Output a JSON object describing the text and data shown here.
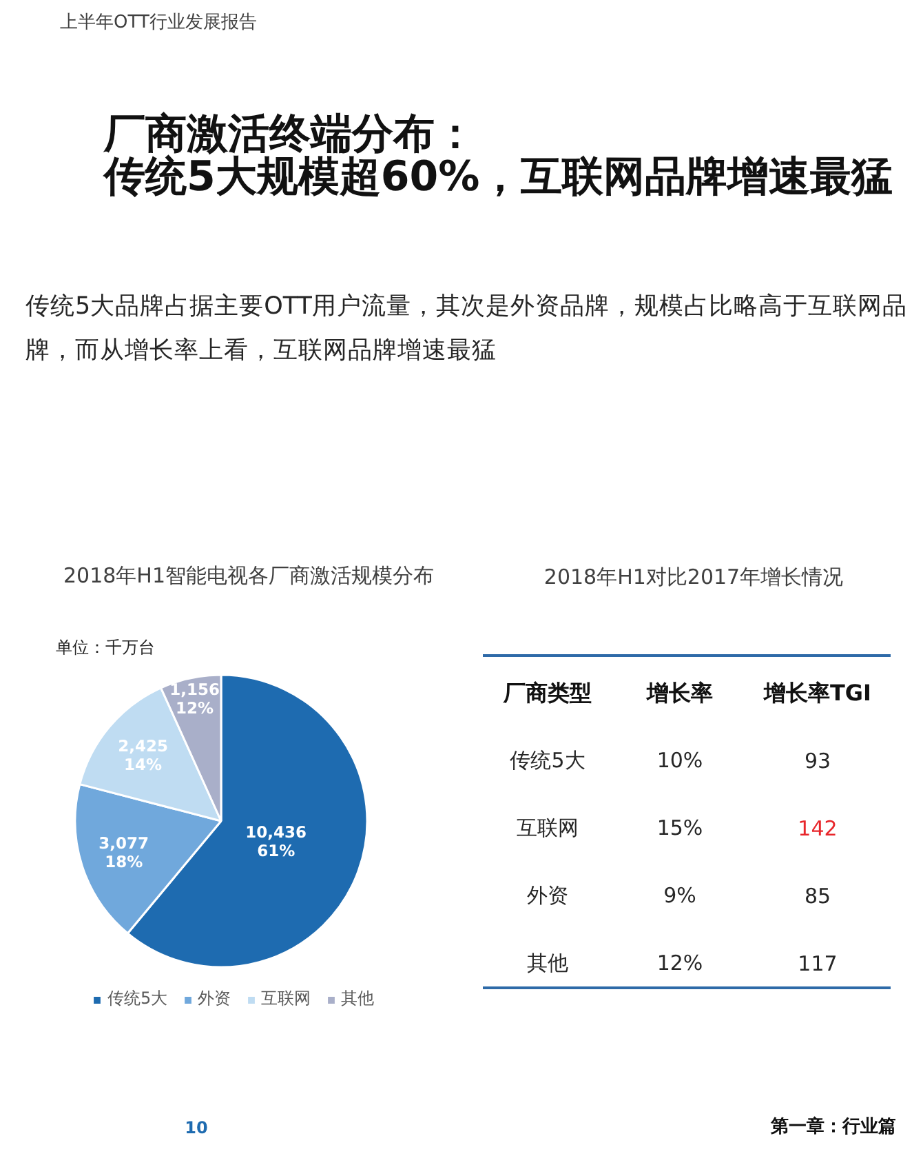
{
  "chart_data": [
    {
      "type": "other",
      "title": "厂商激活终端分布：传统5大规模超60%，互联网品牌增速最猛",
      "subtitle": "传统5大品牌占据主要OTT用户流量，其次是外资品牌，规模占比略高于互联网品牌，而从增长率上看，互联网品牌增速最猛",
      "annotations": [
        "上半年OTT行业发展报告",
        "10",
        "第一章：行业篇"
      ]
    },
    {
      "type": "pie",
      "title": "2018年H1智能电视各厂商激活规模分布",
      "annotations": [
        "单位：千万台"
      ],
      "categories": [
        "传统5大",
        "外资",
        "互联网",
        "其他"
      ],
      "values": [
        10436,
        3077,
        2425,
        1156
      ],
      "colors": [
        "#1e6bb0",
        "#70a8dc",
        "#bfdcf2",
        "#a9afc9"
      ],
      "value_labels": [
        "10,436\n61%",
        "3,077\n18%",
        "2,425\n14%",
        "1,156\n12%"
      ],
      "legend": "bottom"
    },
    {
      "type": "other",
      "title": "2018年H1对比2017年增长情况",
      "ylabel": "厂商类型",
      "categories": [
        "增长率",
        "增长率TGI"
      ],
      "y_categories": [
        "传统5大",
        "互联网",
        "外资",
        "其他"
      ],
      "cell_labels": [
        [
          "10%",
          "93"
        ],
        [
          "15%",
          "142"
        ],
        [
          "9%",
          "85"
        ],
        [
          "12%",
          "117"
        ]
      ],
      "colors": [
        [
          "#262626",
          "#262626"
        ],
        [
          "#262626",
          "#e8262b"
        ],
        [
          "#262626",
          "#262626"
        ],
        [
          "#262626",
          "#262626"
        ]
      ]
    }
  ]
}
